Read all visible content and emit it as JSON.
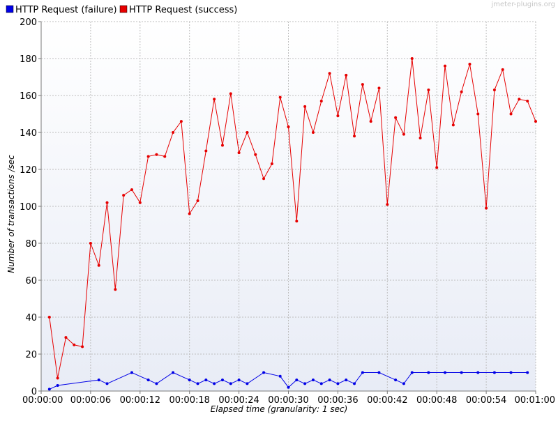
{
  "watermark": "jmeter-plugins.org",
  "chart_data": {
    "type": "line",
    "title": "",
    "xlabel": "Elapsed time (granularity: 1 sec)",
    "ylabel": "Number of transactions /sec",
    "xlim": [
      0,
      60
    ],
    "ylim": [
      0,
      200
    ],
    "x_ticks": [
      0,
      6,
      12,
      18,
      24,
      30,
      36,
      42,
      48,
      54,
      60
    ],
    "x_tick_labels": [
      "00:00:00",
      "00:00:06",
      "00:00:12",
      "00:00:18",
      "00:00:24",
      "00:00:30",
      "00:00:36",
      "00:00:42",
      "00:00:48",
      "00:00:54",
      "00:01:00"
    ],
    "y_ticks": [
      0,
      20,
      40,
      60,
      80,
      100,
      120,
      140,
      160,
      180,
      200
    ],
    "grid": true,
    "legend_position": "top-left",
    "series": [
      {
        "name": "HTTP Request (failure)",
        "color": "#0000e6",
        "points": [
          [
            1,
            1
          ],
          [
            2,
            3
          ],
          [
            7,
            6
          ],
          [
            8,
            4
          ],
          [
            11,
            10
          ],
          [
            13,
            6
          ],
          [
            14,
            4
          ],
          [
            16,
            10
          ],
          [
            18,
            6
          ],
          [
            19,
            4
          ],
          [
            20,
            6
          ],
          [
            21,
            4
          ],
          [
            22,
            6
          ],
          [
            23,
            4
          ],
          [
            24,
            6
          ],
          [
            25,
            4
          ],
          [
            27,
            10
          ],
          [
            29,
            8
          ],
          [
            30,
            2
          ],
          [
            31,
            6
          ],
          [
            32,
            4
          ],
          [
            33,
            6
          ],
          [
            34,
            4
          ],
          [
            35,
            6
          ],
          [
            36,
            4
          ],
          [
            37,
            6
          ],
          [
            38,
            4
          ],
          [
            39,
            10
          ],
          [
            41,
            10
          ],
          [
            43,
            6
          ],
          [
            44,
            4
          ],
          [
            45,
            10
          ],
          [
            47,
            10
          ],
          [
            49,
            10
          ],
          [
            51,
            10
          ],
          [
            53,
            10
          ],
          [
            55,
            10
          ],
          [
            57,
            10
          ],
          [
            59,
            10
          ]
        ]
      },
      {
        "name": "HTTP Request (success)",
        "color": "#e60000",
        "points": [
          [
            1,
            40
          ],
          [
            2,
            7
          ],
          [
            3,
            29
          ],
          [
            4,
            25
          ],
          [
            5,
            24
          ],
          [
            6,
            80
          ],
          [
            7,
            68
          ],
          [
            8,
            102
          ],
          [
            9,
            55
          ],
          [
            10,
            106
          ],
          [
            11,
            109
          ],
          [
            12,
            102
          ],
          [
            13,
            127
          ],
          [
            14,
            128
          ],
          [
            15,
            127
          ],
          [
            16,
            140
          ],
          [
            17,
            146
          ],
          [
            18,
            96
          ],
          [
            19,
            103
          ],
          [
            20,
            130
          ],
          [
            21,
            158
          ],
          [
            22,
            133
          ],
          [
            23,
            161
          ],
          [
            24,
            129
          ],
          [
            25,
            140
          ],
          [
            26,
            128
          ],
          [
            27,
            115
          ],
          [
            28,
            123
          ],
          [
            29,
            159
          ],
          [
            30,
            143
          ],
          [
            31,
            92
          ],
          [
            32,
            154
          ],
          [
            33,
            140
          ],
          [
            34,
            157
          ],
          [
            35,
            172
          ],
          [
            36,
            149
          ],
          [
            37,
            171
          ],
          [
            38,
            138
          ],
          [
            39,
            166
          ],
          [
            40,
            146
          ],
          [
            41,
            164
          ],
          [
            42,
            101
          ],
          [
            43,
            148
          ],
          [
            44,
            139
          ],
          [
            45,
            180
          ],
          [
            46,
            137
          ],
          [
            47,
            163
          ],
          [
            48,
            121
          ],
          [
            49,
            176
          ],
          [
            50,
            144
          ],
          [
            51,
            162
          ],
          [
            52,
            177
          ],
          [
            53,
            150
          ],
          [
            54,
            99
          ],
          [
            55,
            163
          ],
          [
            56,
            174
          ],
          [
            57,
            150
          ],
          [
            58,
            158
          ],
          [
            59,
            157
          ],
          [
            60,
            146
          ]
        ]
      }
    ]
  }
}
